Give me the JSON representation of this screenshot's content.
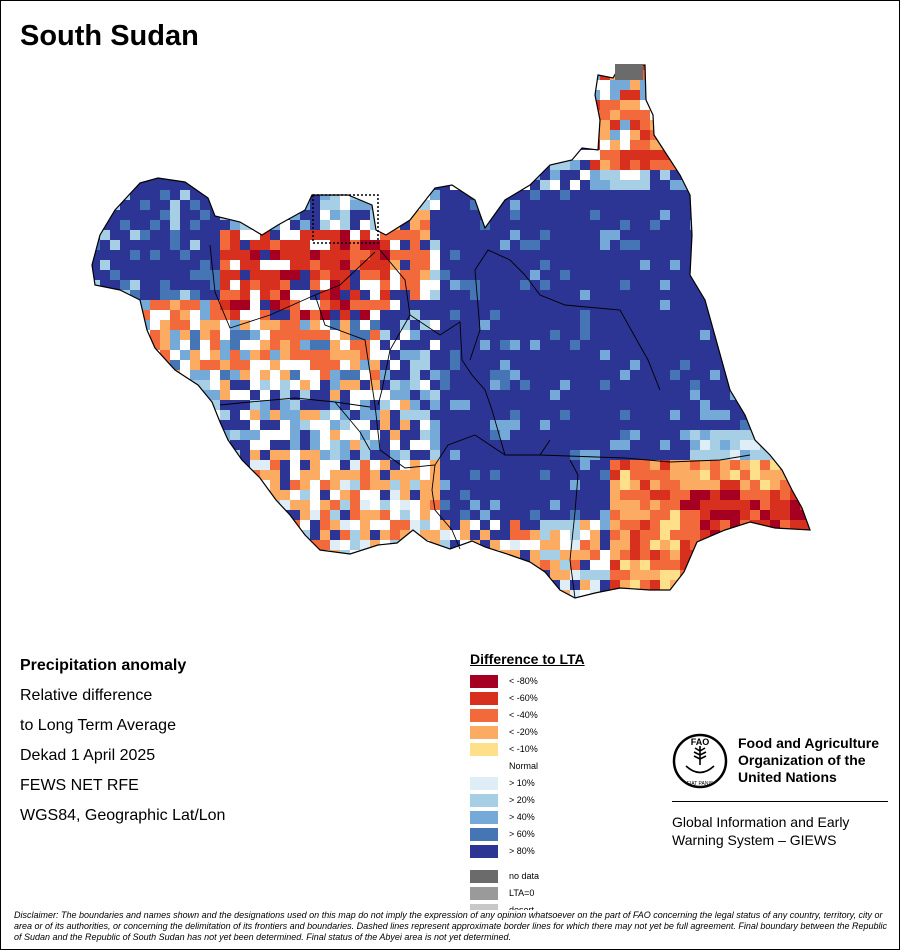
{
  "map": {
    "title": "South Sudan",
    "colors": {
      "border": "#000000",
      "lt80": "#a50021",
      "lt60": "#d7301f",
      "lt40": "#f26a3c",
      "lt20": "#fbab62",
      "lt10": "#fee08b",
      "normal": "#ffffff",
      "gt10": "#deedf6",
      "gt20": "#a6cfe6",
      "gt40": "#74a9d8",
      "gt60": "#4575b4",
      "gt80": "#2c3594",
      "no_data": "#6b6b6b",
      "lta0": "#9a9a9a",
      "desert": "#c8c8c8"
    }
  },
  "info": {
    "heading": "Precipitation anomaly",
    "line1": "Relative difference",
    "line2": "to Long Term Average",
    "period": "Dekad 1 April 2025",
    "source": "FEWS NET RFE",
    "projection": "WGS84, Geographic Lat/Lon"
  },
  "legend": {
    "title": "Difference to LTA",
    "items": [
      {
        "label": "< -80%",
        "color": "#a50021"
      },
      {
        "label": "< -60%",
        "color": "#d7301f"
      },
      {
        "label": "< -40%",
        "color": "#f26a3c"
      },
      {
        "label": "< -20%",
        "color": "#fbab62"
      },
      {
        "label": "< -10%",
        "color": "#fee08b"
      },
      {
        "label": "Normal",
        "color": "#ffffff"
      },
      {
        "label": "> 10%",
        "color": "#deedf6"
      },
      {
        "label": "> 20%",
        "color": "#a6cfe6"
      },
      {
        "label": "> 40%",
        "color": "#74a9d8"
      },
      {
        "label": "> 60%",
        "color": "#4575b4"
      },
      {
        "label": "> 80%",
        "color": "#2c3594"
      }
    ],
    "extra": [
      {
        "label": "no data",
        "color": "#6b6b6b"
      },
      {
        "label": "LTA=0",
        "color": "#9a9a9a"
      },
      {
        "label": "desert",
        "color": "#c8c8c8"
      }
    ]
  },
  "logo": {
    "fao_line1": "Food and Agriculture",
    "fao_line2": "Organization of the",
    "fao_line3": "United Nations",
    "emblem_text": "FAO",
    "emblem_motto": "FIAT PANIS",
    "giews_line1": "Global Information and Early",
    "giews_line2": "Warning System – GIEWS"
  },
  "disclaimer": "Disclaimer: The boundaries and names shown and the designations used on this map do not imply the expression of any opinion whatsoever on the part of FAO concerning the legal status of any country, territory, city or area or of its authorities, or concerning the delimitation of its frontiers and boundaries. Dashed lines represent approximate border lines for which there may not yet be full agreement. Final boundary between the Republic of Sudan and the Republic of South Sudan has not yet been determined. Final status of the Abyei area is not yet determined."
}
